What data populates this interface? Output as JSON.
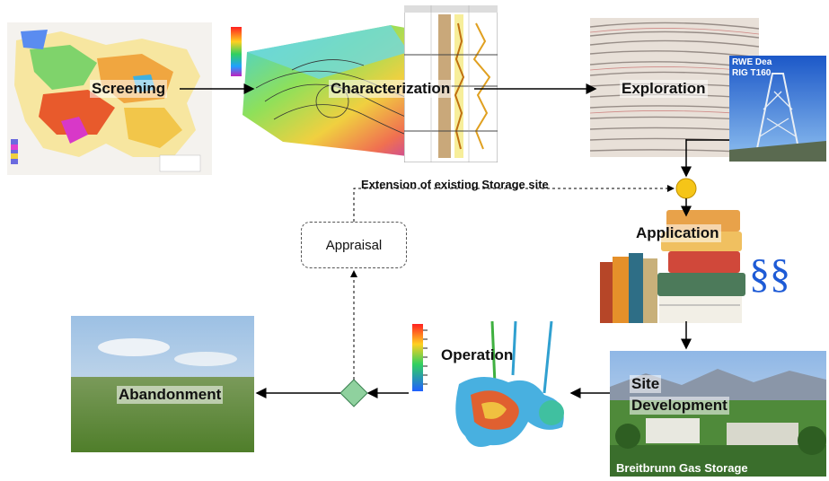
{
  "stages": {
    "screening": "Screening",
    "characterization": "Characterization",
    "exploration": "Exploration",
    "application": "Application",
    "site_development_1": "Site",
    "site_development_2": "Development",
    "operation": "Operation",
    "abandonment": "Abandonment",
    "appraisal": "Appraisal"
  },
  "labels": {
    "extension": "Extension of existing Storage site",
    "rig_line1": "RWE Dea",
    "rig_line2": "RIG T160",
    "breitbrunn": "Breitbrunn Gas Storage",
    "paragraph_symbol": "§§"
  },
  "colors": {
    "decision_node": "#f5c518",
    "merge_node": "#8fd19e",
    "paragraph_symbol": "#1e5bd6"
  }
}
